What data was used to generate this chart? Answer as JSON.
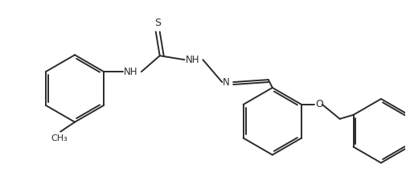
{
  "background_color": "#ffffff",
  "line_color": "#2b2b2b",
  "line_width": 1.4,
  "font_size": 8.5,
  "font_color": "#2b2b2b",
  "figsize": [
    5.06,
    2.2
  ],
  "dpi": 100,
  "xlim": [
    0,
    5.06
  ],
  "ylim": [
    0,
    2.2
  ]
}
